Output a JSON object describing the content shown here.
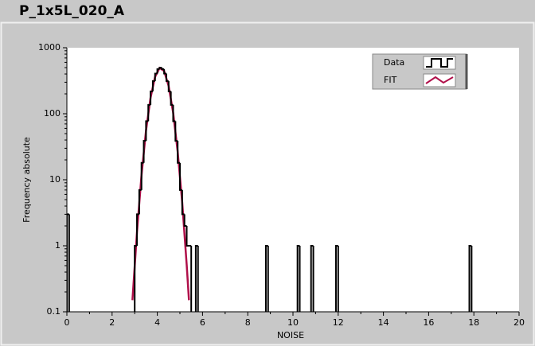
{
  "chart_data": {
    "type": "step",
    "title": "P_1x5L_020_A",
    "x_label": "NOISE",
    "y_label": "Frequency absolute",
    "log_y": true,
    "xlim": [
      0,
      20
    ],
    "xticks": [
      0,
      2,
      4,
      6,
      8,
      10,
      12,
      14,
      16,
      18,
      20
    ],
    "ylim": [
      0.1,
      1000
    ],
    "yticks": [
      0.1,
      1,
      10,
      100,
      1000
    ],
    "legend": "top-right",
    "series": [
      {
        "name": "Data",
        "color": "#000000",
        "style": "step",
        "x": [
          0.05,
          0.15,
          2.95,
          3.05,
          3.15,
          3.25,
          3.35,
          3.45,
          3.55,
          3.65,
          3.75,
          3.85,
          3.95,
          4.05,
          4.15,
          4.25,
          4.35,
          4.45,
          4.55,
          4.65,
          4.75,
          4.85,
          4.95,
          5.05,
          5.15,
          5.25,
          5.35,
          5.45,
          5.55,
          5.65,
          5.75,
          5.85,
          8.75,
          8.85,
          8.95,
          10.15,
          10.25,
          10.35,
          10.75,
          10.85,
          10.95,
          11.85,
          11.95,
          12.05,
          17.75,
          17.85,
          17.95
        ],
        "values": [
          3,
          0,
          0,
          1,
          3,
          7,
          18,
          39,
          77,
          136,
          218,
          313,
          406,
          474,
          500,
          474,
          406,
          313,
          218,
          136,
          77,
          39,
          18,
          7,
          3,
          2,
          1,
          1,
          0,
          0,
          1,
          0,
          0,
          1,
          0,
          0,
          1,
          0,
          0,
          1,
          0,
          0,
          1,
          0,
          0,
          1,
          0
        ]
      },
      {
        "name": "FIT",
        "color": "#b0104a",
        "style": "line",
        "x": [
          2.9,
          3.1,
          3.3,
          3.5,
          3.7,
          3.9,
          4.1,
          4.3,
          4.5,
          4.7,
          4.9,
          5.1,
          5.3,
          5.4
        ],
        "values": [
          0.15,
          1.6,
          11.6,
          55.5,
          174,
          361,
          494,
          445,
          264,
          104,
          26.8,
          4.6,
          0.51,
          0.15
        ]
      }
    ]
  }
}
